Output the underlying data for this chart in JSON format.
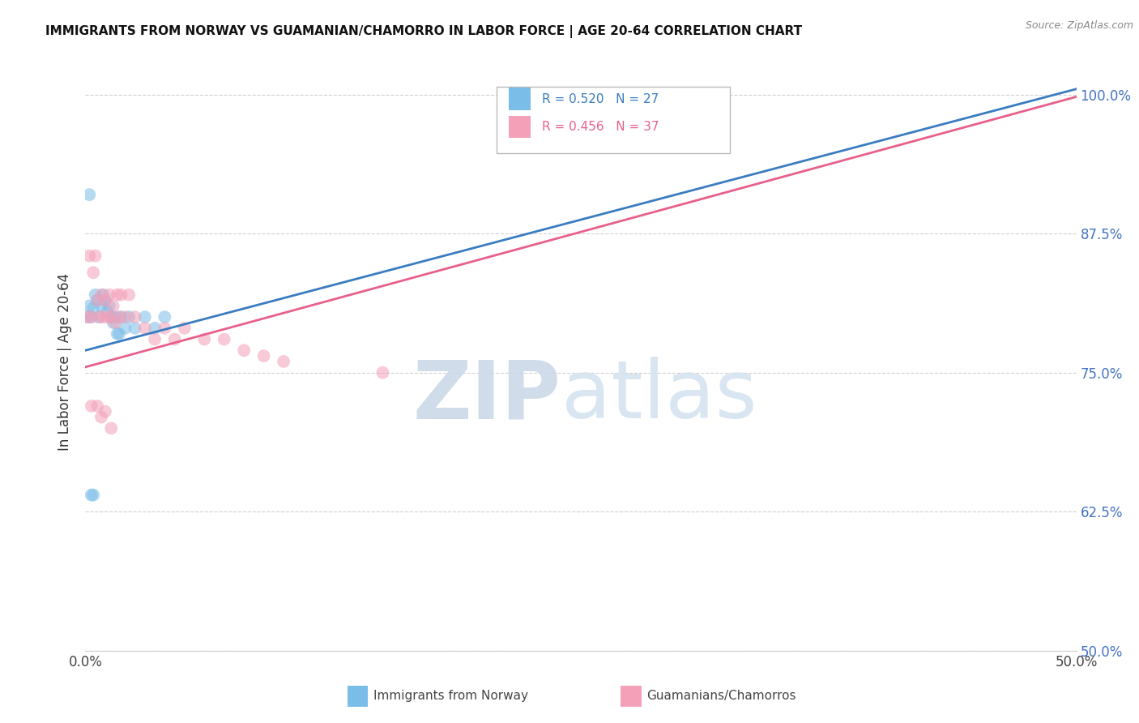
{
  "title": "IMMIGRANTS FROM NORWAY VS GUAMANIAN/CHAMORRO IN LABOR FORCE | AGE 20-64 CORRELATION CHART",
  "source": "Source: ZipAtlas.com",
  "ylabel": "In Labor Force | Age 20-64",
  "xlim": [
    0.0,
    0.5
  ],
  "ylim": [
    0.5,
    1.02
  ],
  "norway_color": "#7abde8",
  "guam_color": "#f4a0b8",
  "norway_line_color": "#3a7cc1",
  "guam_line_color": "#e8608a",
  "legend_label_norway": "Immigrants from Norway",
  "legend_label_guam": "Guamanians/Chamorros",
  "norway_R": "0.520",
  "norway_N": "27",
  "guam_R": "0.456",
  "guam_N": "37",
  "watermark_ZIP": "ZIP",
  "watermark_atlas": "atlas",
  "background_color": "#ffffff",
  "grid_color": "#cccccc",
  "norway_x": [
    0.001,
    0.002,
    0.003,
    0.004,
    0.005,
    0.006,
    0.007,
    0.008,
    0.009,
    0.01,
    0.011,
    0.012,
    0.013,
    0.014,
    0.015,
    0.016,
    0.017,
    0.018,
    0.02,
    0.022,
    0.025,
    0.03,
    0.035,
    0.04,
    0.002,
    0.004,
    0.003
  ],
  "norway_y": [
    0.8,
    0.81,
    0.8,
    0.808,
    0.82,
    0.815,
    0.8,
    0.81,
    0.82,
    0.815,
    0.805,
    0.81,
    0.8,
    0.795,
    0.8,
    0.785,
    0.785,
    0.8,
    0.79,
    0.8,
    0.79,
    0.8,
    0.79,
    0.8,
    0.91,
    0.64,
    0.64
  ],
  "guam_x": [
    0.001,
    0.002,
    0.003,
    0.004,
    0.005,
    0.006,
    0.007,
    0.008,
    0.009,
    0.01,
    0.011,
    0.012,
    0.013,
    0.014,
    0.015,
    0.016,
    0.017,
    0.018,
    0.02,
    0.022,
    0.025,
    0.03,
    0.035,
    0.04,
    0.045,
    0.05,
    0.06,
    0.07,
    0.08,
    0.09,
    0.1,
    0.15,
    0.003,
    0.006,
    0.008,
    0.01,
    0.013
  ],
  "guam_y": [
    0.8,
    0.855,
    0.8,
    0.84,
    0.855,
    0.815,
    0.8,
    0.82,
    0.8,
    0.815,
    0.8,
    0.82,
    0.8,
    0.81,
    0.795,
    0.82,
    0.8,
    0.82,
    0.8,
    0.82,
    0.8,
    0.79,
    0.78,
    0.79,
    0.78,
    0.79,
    0.78,
    0.78,
    0.77,
    0.765,
    0.76,
    0.75,
    0.72,
    0.72,
    0.71,
    0.715,
    0.7
  ],
  "line_norway_x0": 0.0,
  "line_norway_y0": 0.77,
  "line_norway_x1": 0.5,
  "line_norway_y1": 1.005,
  "line_guam_x0": 0.0,
  "line_guam_y0": 0.755,
  "line_guam_x1": 0.5,
  "line_guam_y1": 0.998
}
